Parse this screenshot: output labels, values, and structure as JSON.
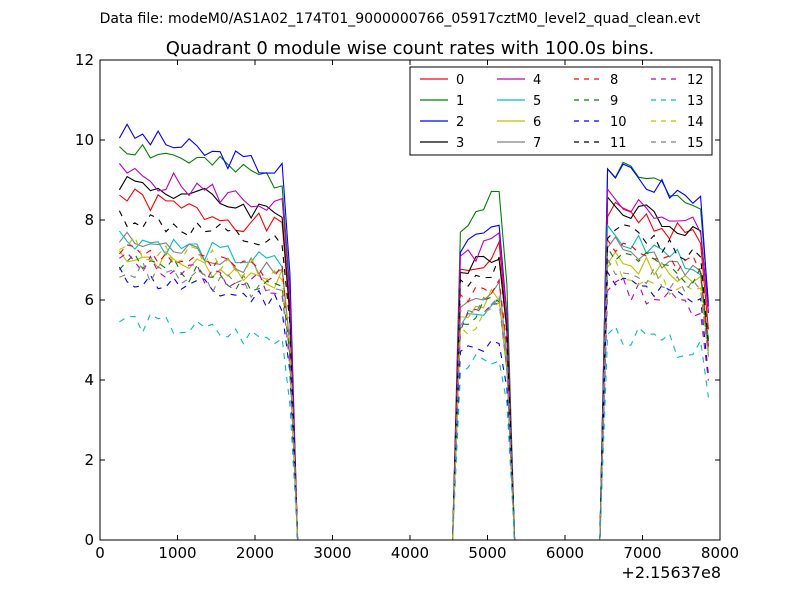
{
  "suptitle": "Data file: modeM0/AS1A02_174T01_9000000766_05917cztM0_level2_quad_clean.evt",
  "chart_data": {
    "type": "line",
    "title": "Quadrant 0 module wise count rates with 100.0s bins.",
    "xlabel": "",
    "ylabel": "",
    "x_offset_label": "+2.15637e8",
    "xlim": [
      0,
      8000
    ],
    "ylim": [
      0,
      12
    ],
    "xticks": [
      0,
      1000,
      2000,
      3000,
      4000,
      5000,
      6000,
      7000,
      8000
    ],
    "yticks": [
      0,
      2,
      4,
      6,
      8,
      10,
      12
    ],
    "grid": false,
    "legend_position": "top-right",
    "legend_columns": 4,
    "series": [
      {
        "name": "0",
        "color": "#ff0000",
        "dash": "solid",
        "levels": [
          8.6,
          7.2,
          8.3
        ]
      },
      {
        "name": "1",
        "color": "#008000",
        "dash": "solid",
        "levels": [
          9.9,
          8.6,
          9.4
        ]
      },
      {
        "name": "2",
        "color": "#0000ff",
        "dash": "solid",
        "levels": [
          10.2,
          7.9,
          9.3
        ]
      },
      {
        "name": "3",
        "color": "#000000",
        "dash": "solid",
        "levels": [
          9.0,
          7.2,
          8.5
        ]
      },
      {
        "name": "4",
        "color": "#bf00bf",
        "dash": "solid",
        "levels": [
          9.2,
          7.5,
          8.6
        ]
      },
      {
        "name": "5",
        "color": "#00bfbf",
        "dash": "solid",
        "levels": [
          7.6,
          6.0,
          7.6
        ]
      },
      {
        "name": "6",
        "color": "#bfbf00",
        "dash": "solid",
        "levels": [
          7.2,
          6.1,
          7.1
        ]
      },
      {
        "name": "7",
        "color": "#808080",
        "dash": "solid",
        "levels": [
          7.5,
          6.2,
          7.4
        ]
      },
      {
        "name": "8",
        "color": "#ff0000",
        "dash": "dashed",
        "levels": [
          7.3,
          6.4,
          7.5
        ]
      },
      {
        "name": "9",
        "color": "#008000",
        "dash": "dashed",
        "levels": [
          7.0,
          6.0,
          7.2
        ]
      },
      {
        "name": "10",
        "color": "#0000ff",
        "dash": "dashed",
        "levels": [
          6.6,
          5.1,
          6.5
        ]
      },
      {
        "name": "11",
        "color": "#000000",
        "dash": "dashed",
        "levels": [
          8.1,
          6.9,
          7.8
        ]
      },
      {
        "name": "12",
        "color": "#bf00bf",
        "dash": "dashed",
        "levels": [
          7.0,
          5.9,
          6.4
        ]
      },
      {
        "name": "13",
        "color": "#00bfbf",
        "dash": "dashed",
        "levels": [
          5.5,
          4.6,
          5.2
        ]
      },
      {
        "name": "14",
        "color": "#bfbf00",
        "dash": "dashed",
        "levels": [
          7.4,
          5.7,
          6.8
        ]
      },
      {
        "name": "15",
        "color": "#808080",
        "dash": "dashed",
        "levels": [
          6.8,
          6.0,
          6.9
        ]
      }
    ],
    "segments": [
      {
        "start": 250,
        "end": 2450,
        "step": 100
      },
      {
        "start": 4650,
        "end": 5250,
        "step": 100
      },
      {
        "start": 6550,
        "end": 7850,
        "step": 100
      }
    ],
    "gap_x": [
      2550,
      2650,
      4450,
      4550,
      5350,
      5450,
      6350,
      6450
    ]
  }
}
